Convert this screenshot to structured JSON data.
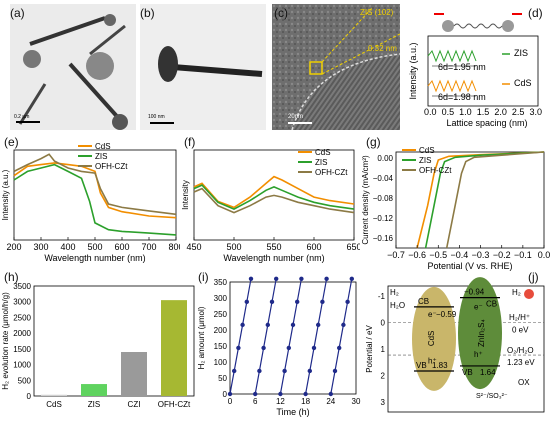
{
  "panels": {
    "a": {
      "label": "(a)",
      "scalebar": "0.2 μm"
    },
    "b": {
      "label": "(b)",
      "scalebar": "100 nm"
    },
    "c": {
      "label": "(c)",
      "plane": "ZIS (102)",
      "spacing": "0.32 nm",
      "scalebar": "20nm"
    },
    "d": {
      "label": "(d)",
      "ylabel": "Intensity (a.u.)",
      "xlabel": "Lattice spacing (nm)",
      "xticks": [
        "0.0",
        "0.5",
        "1.0",
        "1.5",
        "2.0",
        "2.5",
        "3.0"
      ],
      "series": [
        {
          "name": "ZIS",
          "note": "6d=1.95 nm",
          "color": "#2ca02c"
        },
        {
          "name": "CdS",
          "note": "6d=1.98 nm",
          "color": "#f28e00"
        }
      ]
    },
    "e": {
      "label": "(e)",
      "ylabel": "Intensity (a.u.)",
      "xlabel": "Wavelength number (nm)",
      "xticks": [
        "200",
        "300",
        "400",
        "500",
        "600",
        "700",
        "800"
      ],
      "legend": [
        "CdS",
        "ZIS",
        "OFH-CZt"
      ]
    },
    "f": {
      "label": "(f)",
      "ylabel": "Intensity",
      "xlabel": "Wavelength number (nm)",
      "xticks": [
        "450",
        "500",
        "550",
        "600",
        "650"
      ],
      "legend": [
        "CdS",
        "ZIS",
        "OFH-CZt"
      ]
    },
    "g": {
      "label": "(g)",
      "ylabel": "Current density (mA/cm²)",
      "xlabel": "Potential (V vs. RHE)",
      "xticks": [
        "−0.7",
        "−0.6",
        "−0.5",
        "−0.4",
        "−0.3",
        "−0.2",
        "−0.1",
        "0.0"
      ],
      "yticks": [
        "0.00",
        "−0.04",
        "−0.08",
        "−0.12",
        "−0.16"
      ],
      "legend": [
        "CdS",
        "ZIS",
        "OFH-CZt"
      ]
    },
    "h": {
      "label": "(h)",
      "ylabel": "H₂ evolution rate (μmol/h/g)",
      "yticks": [
        "0",
        "500",
        "1000",
        "1500",
        "2000",
        "2500",
        "3000",
        "3500"
      ]
    },
    "i": {
      "label": "(i)",
      "ylabel": "H₂ amount (μmol)",
      "xlabel": "Time (h)",
      "xticks": [
        "0",
        "6",
        "12",
        "18",
        "24",
        "30"
      ],
      "yticks": [
        "0",
        "50",
        "100",
        "150",
        "200",
        "250",
        "300",
        "350"
      ]
    },
    "j": {
      "label": "(j)",
      "ylabel": "Potential / eV",
      "yticks": [
        "-1",
        "0",
        "1",
        "2",
        "3"
      ],
      "cds": {
        "name": "CdS",
        "cb": "−0.59",
        "vb": "1.83"
      },
      "zis": {
        "name": "ZnIn₂S₄",
        "cb": "−0.94",
        "vb": "1.64"
      },
      "h2": "H₂",
      "h2o": "H₂O",
      "cb_label": "CB",
      "vb_label": "VB",
      "e": "e⁻",
      "h": "h⁺",
      "hplus": "H₂/H⁺",
      "zero": "0 eV",
      "o2": "O₂/H₂O",
      "o2v": "1.23 eV",
      "sac": "S²⁻/SO₃²⁻",
      "ox": "OX"
    }
  },
  "chart_data": [
    {
      "type": "bar",
      "panel": "h",
      "categories": [
        "CdS",
        "ZIS",
        "CZI",
        "OFH-CZt"
      ],
      "values": [
        40,
        380,
        1400,
        3050
      ],
      "ylabel": "H₂ evolution rate (μmol/h/g)",
      "ylim": [
        0,
        3500
      ]
    },
    {
      "type": "line",
      "panel": "i",
      "xlabel": "Time (h)",
      "ylabel": "H₂ amount (μmol)",
      "xlim": [
        0,
        30
      ],
      "ylim": [
        0,
        350
      ],
      "cycles": [
        {
          "start": 0,
          "end": 5,
          "max": 360
        },
        {
          "start": 6,
          "end": 11,
          "max": 360
        },
        {
          "start": 12,
          "end": 17,
          "max": 360
        },
        {
          "start": 18,
          "end": 23,
          "max": 360
        },
        {
          "start": 24,
          "end": 29,
          "max": 360
        }
      ]
    },
    {
      "type": "line",
      "panel": "e",
      "xlabel": "Wavelength number (nm)",
      "ylabel": "Intensity (a.u.)",
      "xlim": [
        200,
        800
      ],
      "series": [
        {
          "name": "CdS",
          "color": "#f28e00",
          "x": [
            200,
            250,
            300,
            350,
            400,
            450,
            500,
            520,
            550,
            600,
            700,
            800
          ],
          "y": [
            0.75,
            0.86,
            0.88,
            0.9,
            0.88,
            0.86,
            0.8,
            0.55,
            0.38,
            0.33,
            0.28,
            0.26
          ]
        },
        {
          "name": "ZIS",
          "color": "#2ca02c",
          "x": [
            200,
            250,
            300,
            350,
            400,
            450,
            480,
            500,
            550,
            600,
            700,
            800
          ],
          "y": [
            0.7,
            0.8,
            0.84,
            0.88,
            0.8,
            0.72,
            0.45,
            0.2,
            0.12,
            0.1,
            0.08,
            0.06
          ]
        },
        {
          "name": "OFH-CZt",
          "color": "#8c7a45",
          "x": [
            200,
            250,
            300,
            330,
            350,
            400,
            450,
            500,
            520,
            550,
            600,
            700,
            800
          ],
          "y": [
            0.8,
            0.88,
            0.95,
            1.0,
            0.92,
            0.84,
            0.8,
            0.78,
            0.6,
            0.42,
            0.38,
            0.34,
            0.3
          ]
        }
      ]
    },
    {
      "type": "line",
      "panel": "f",
      "xlabel": "Wavelength number (nm)",
      "ylabel": "Intensity",
      "xlim": [
        450,
        650
      ],
      "series": [
        {
          "name": "CdS",
          "color": "#f28e00",
          "x": [
            450,
            460,
            480,
            500,
            520,
            540,
            550,
            560,
            580,
            600,
            620,
            650
          ],
          "y": [
            0.62,
            0.66,
            0.45,
            0.38,
            0.5,
            0.66,
            0.74,
            0.7,
            0.6,
            0.5,
            0.46,
            0.42
          ]
        },
        {
          "name": "ZIS",
          "color": "#2ca02c",
          "x": [
            450,
            460,
            480,
            500,
            520,
            540,
            550,
            560,
            580,
            600,
            620,
            650
          ],
          "y": [
            0.6,
            0.64,
            0.44,
            0.36,
            0.46,
            0.58,
            0.62,
            0.58,
            0.5,
            0.44,
            0.4,
            0.36
          ]
        },
        {
          "name": "OFH-CZt",
          "color": "#8c7a45",
          "x": [
            450,
            460,
            480,
            500,
            520,
            540,
            550,
            560,
            580,
            600,
            620,
            650
          ],
          "y": [
            0.56,
            0.6,
            0.4,
            0.32,
            0.4,
            0.5,
            0.52,
            0.5,
            0.44,
            0.4,
            0.36,
            0.32
          ]
        }
      ]
    },
    {
      "type": "line",
      "panel": "g",
      "xlabel": "Potential (V vs. RHE)",
      "ylabel": "Current density (mA/cm²)",
      "xlim": [
        -0.7,
        0.0
      ],
      "ylim": [
        -0.18,
        0.0
      ],
      "series": [
        {
          "name": "CdS",
          "color": "#f28e00",
          "x": [
            -0.6,
            -0.55,
            -0.52,
            -0.5,
            -0.45,
            -0.3,
            0.0
          ],
          "y": [
            -0.18,
            -0.1,
            -0.04,
            -0.015,
            -0.008,
            -0.005,
            0.0
          ]
        },
        {
          "name": "ZIS",
          "color": "#2ca02c",
          "x": [
            -0.56,
            -0.52,
            -0.49,
            -0.47,
            -0.42,
            -0.3,
            0.0
          ],
          "y": [
            -0.18,
            -0.1,
            -0.04,
            -0.018,
            -0.01,
            -0.006,
            0.0
          ]
        },
        {
          "name": "OFH-CZt",
          "color": "#8c7a45",
          "x": [
            -0.46,
            -0.42,
            -0.39,
            -0.37,
            -0.33,
            -0.2,
            0.0
          ],
          "y": [
            -0.18,
            -0.1,
            -0.04,
            -0.018,
            -0.01,
            -0.006,
            0.0
          ]
        }
      ]
    }
  ]
}
